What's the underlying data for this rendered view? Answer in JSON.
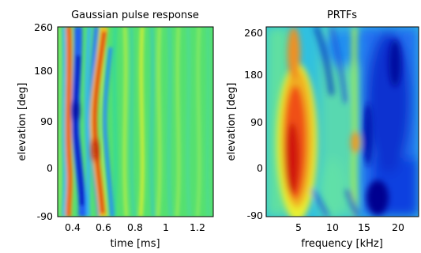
{
  "chart_data": [
    {
      "type": "heatmap",
      "title": "Gaussian pulse response",
      "xlabel": "time [ms]",
      "ylabel": "elevation [deg]",
      "xlim": [
        0.3,
        1.3
      ],
      "ylim": [
        -90,
        260
      ],
      "xticks": [
        0.4,
        0.6,
        0.8,
        1,
        1.2
      ],
      "xtick_labels": [
        "0.4",
        "0.6",
        "0.8",
        "1",
        "1.2"
      ],
      "yticks": [
        -90,
        0,
        90,
        180,
        260
      ],
      "ytick_labels": [
        "-90",
        "0",
        "90",
        "180",
        "260"
      ],
      "colormap": "jet",
      "background_color": "#55e070",
      "features": [
        {
          "kind": "ridge",
          "value": "high",
          "x_path": [
            [
              0.37,
              -90
            ],
            [
              0.39,
              0
            ],
            [
              0.38,
              90
            ],
            [
              0.39,
              180
            ],
            [
              0.37,
              260
            ]
          ]
        },
        {
          "kind": "ridge",
          "value": "low",
          "x_path": [
            [
              0.45,
              -90
            ],
            [
              0.48,
              0
            ],
            [
              0.44,
              90
            ],
            [
              0.46,
              180
            ],
            [
              0.44,
              260
            ]
          ]
        },
        {
          "kind": "ridge",
          "value": "high",
          "x_path": [
            [
              0.63,
              -90
            ],
            [
              0.58,
              45
            ],
            [
              0.57,
              90
            ],
            [
              0.63,
              180
            ],
            [
              0.62,
              260
            ]
          ]
        }
      ]
    },
    {
      "type": "heatmap",
      "title": "PRTFs",
      "xlabel": "frequency [kHz]",
      "ylabel": "elevation [deg]",
      "xlim": [
        0,
        24
      ],
      "ylim": [
        -90,
        260
      ],
      "xticks": [
        5,
        10,
        15,
        20
      ],
      "xtick_labels": [
        "5",
        "10",
        "15",
        "20"
      ],
      "yticks": [
        -90,
        0,
        90,
        180,
        260
      ],
      "ytick_labels": [
        "-90",
        "0",
        "90",
        "180",
        "260"
      ],
      "colormap": "jet",
      "background_color": "#30c0e0",
      "features": [
        {
          "kind": "region",
          "value": "high",
          "center": [
            4.5,
            40
          ],
          "extent": [
            3,
            160
          ]
        },
        {
          "kind": "region",
          "value": "low",
          "center": [
            20,
            100
          ],
          "extent": [
            4,
            180
          ]
        },
        {
          "kind": "ridge",
          "value": "high",
          "x_path": [
            [
              13.8,
              -90
            ],
            [
              14,
              50
            ],
            [
              14.2,
              180
            ],
            [
              14,
              260
            ]
          ]
        }
      ]
    }
  ]
}
